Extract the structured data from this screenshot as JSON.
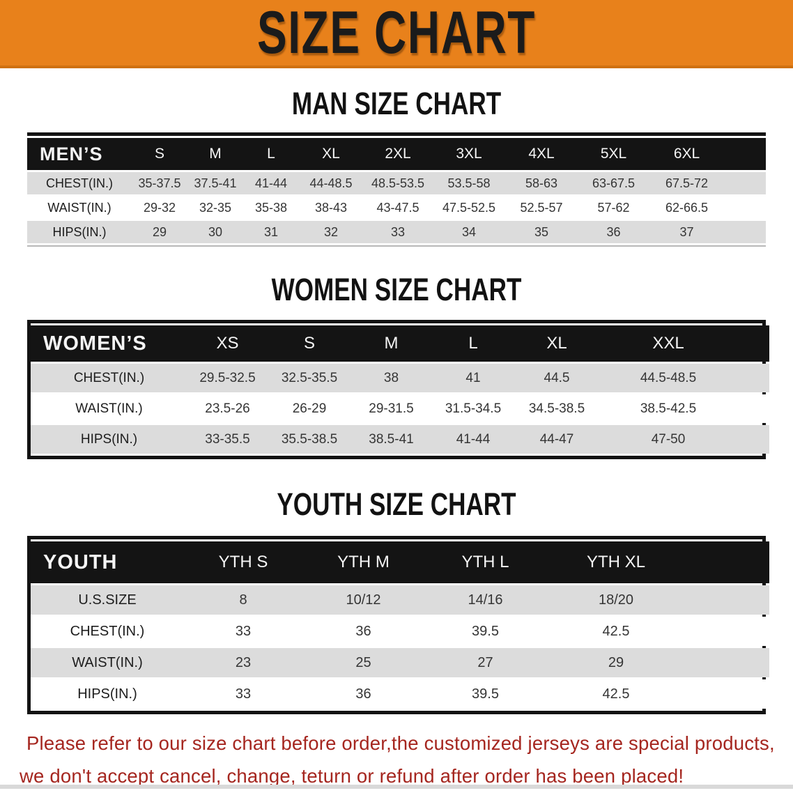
{
  "banner": {
    "title": "SIZE CHART",
    "bg_color": "#E8811B",
    "text_color": "#1B1B1B"
  },
  "sections": {
    "men": {
      "title": "MAN SIZE CHART",
      "header_label": "MEN’S",
      "columns": [
        "S",
        "M",
        "L",
        "XL",
        "2XL",
        "3XL",
        "4XL",
        "5XL",
        "6XL"
      ],
      "rows": [
        {
          "label": "CHEST(IN.)",
          "values": [
            "35-37.5",
            "37.5-41",
            "41-44",
            "44-48.5",
            "48.5-53.5",
            "53.5-58",
            "58-63",
            "63-67.5",
            "67.5-72"
          ]
        },
        {
          "label": "WAIST(IN.)",
          "values": [
            "29-32",
            "32-35",
            "35-38",
            "38-43",
            "43-47.5",
            "47.5-52.5",
            "52.5-57",
            "57-62",
            "62-66.5"
          ]
        },
        {
          "label": "HIPS(IN.)",
          "values": [
            "29",
            "30",
            "31",
            "32",
            "33",
            "34",
            "35",
            "36",
            "37"
          ]
        }
      ]
    },
    "women": {
      "title": "WOMEN SIZE CHART",
      "header_label": "WOMEN’S",
      "columns": [
        "XS",
        "S",
        "M",
        "L",
        "XL",
        "XXL"
      ],
      "rows": [
        {
          "label": "CHEST(IN.)",
          "values": [
            "29.5-32.5",
            "32.5-35.5",
            "38",
            "41",
            "44.5",
            "44.5-48.5"
          ]
        },
        {
          "label": "WAIST(IN.)",
          "values": [
            "23.5-26",
            "26-29",
            "29-31.5",
            "31.5-34.5",
            "34.5-38.5",
            "38.5-42.5"
          ]
        },
        {
          "label": "HIPS(IN.)",
          "values": [
            "33-35.5",
            "35.5-38.5",
            "38.5-41",
            "41-44",
            "44-47",
            "47-50"
          ]
        }
      ]
    },
    "youth": {
      "title": "YOUTH SIZE CHART",
      "header_label": "YOUTH",
      "columns": [
        "YTH S",
        "YTH M",
        "YTH L",
        "YTH XL"
      ],
      "rows": [
        {
          "label": "U.S.SIZE",
          "values": [
            "8",
            "10/12",
            "14/16",
            "18/20"
          ]
        },
        {
          "label": "CHEST(IN.)",
          "values": [
            "33",
            "36",
            "39.5",
            "42.5"
          ]
        },
        {
          "label": "WAIST(IN.)",
          "values": [
            "23",
            "25",
            "27",
            "29"
          ]
        },
        {
          "label": "HIPS(IN.)",
          "values": [
            "33",
            "36",
            "39.5",
            "42.5"
          ]
        }
      ]
    }
  },
  "disclaimer": {
    "line1": "Please refer to our size chart before order,the customized jerseys are special products,",
    "line2": "we don't accept cancel, change, teturn or refund after order has been placed!",
    "color": "#A5261F"
  }
}
